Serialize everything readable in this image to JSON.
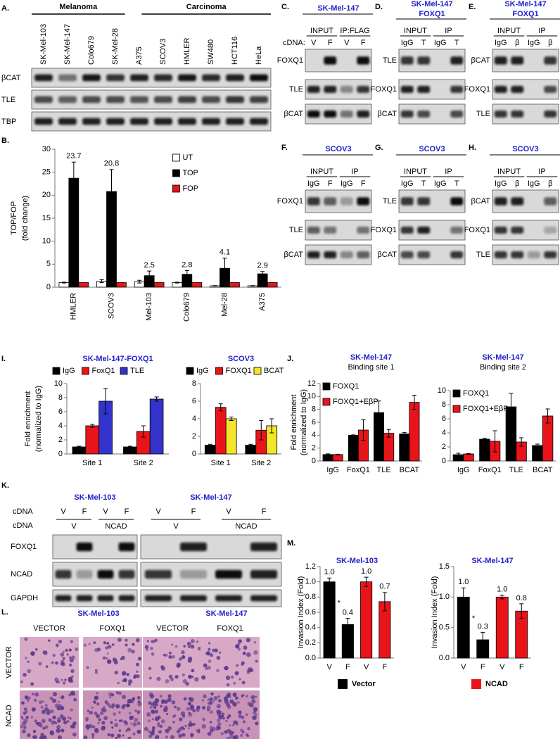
{
  "panel_labels": {
    "A": "A.",
    "B": "B.",
    "C": "C.",
    "D": "D.",
    "E": "E.",
    "F": "F.",
    "G": "G.",
    "H": "H.",
    "I": "I.",
    "J": "J.",
    "K": "K.",
    "L": "L.",
    "M": "M."
  },
  "blots": {
    "A": {
      "groups": [
        {
          "name": "Melanoma",
          "color": "#000000"
        },
        {
          "name": "Carcinoma",
          "color": "#2222cc"
        }
      ],
      "lanes": [
        {
          "label": "SK-Mel-103",
          "color": "#000000"
        },
        {
          "label": "SK-Mel-147",
          "color": "#000000"
        },
        {
          "label": "Colo679",
          "color": "#000000"
        },
        {
          "label": "SK-Mel-28",
          "color": "#000000"
        },
        {
          "label": "A375",
          "color": "#000000"
        },
        {
          "label": "SCOV3",
          "color": "#2222cc"
        },
        {
          "label": "HMLER",
          "color": "#2222cc"
        },
        {
          "label": "SW480",
          "color": "#2222cc"
        },
        {
          "label": "HCT116",
          "color": "#2222cc"
        },
        {
          "label": "HeLa",
          "color": "#2222cc"
        }
      ],
      "rows": [
        "βCAT",
        "TLE",
        "TBP"
      ]
    },
    "C": {
      "title": "SK-Mel-147",
      "headers": [
        "INPUT",
        "IP:FLAG"
      ],
      "lane_caption": "cDNA:",
      "lanes": [
        "V",
        "F",
        "V",
        "F"
      ],
      "rows": [
        "FOXQ1",
        "TLE",
        "βCAT"
      ]
    },
    "D": {
      "title": [
        "SK-Mel-147",
        "FOXQ1"
      ],
      "headers": [
        "INPUT",
        "IP"
      ],
      "lanes": [
        "IgG",
        "T",
        "IgG",
        "T"
      ],
      "rows": [
        "TLE",
        "FOXQ1",
        "βCAT"
      ]
    },
    "E": {
      "title": [
        "SK-Mel-147",
        "FOXQ1"
      ],
      "headers": [
        "INPUT",
        "IP"
      ],
      "lanes": [
        "IgG",
        "β",
        "IgG",
        "β"
      ],
      "rows": [
        "βCAT",
        "FOXQ1",
        "TLE"
      ]
    },
    "F": {
      "title": "SCOV3",
      "headers": [
        "INPUT",
        "IP"
      ],
      "lanes": [
        "IgG",
        "F",
        "IgG",
        "F"
      ],
      "rows": [
        "FOXQ1",
        "TLE",
        "βCAT"
      ]
    },
    "G": {
      "title": "SCOV3",
      "headers": [
        "INPUT",
        "IP"
      ],
      "lanes": [
        "IgG",
        "T",
        "IgG",
        "T"
      ],
      "rows": [
        "TLE",
        "FOXQ1",
        "βCAT"
      ]
    },
    "H": {
      "title": "SCOV3",
      "headers": [
        "INPUT",
        "IP"
      ],
      "lanes": [
        "IgG",
        "β",
        "IgG",
        "β"
      ],
      "rows": [
        "βCAT",
        "FOXQ1",
        "TLE"
      ]
    },
    "K": {
      "captions": [
        "cDNA",
        "cDNA"
      ],
      "rows": [
        "FOXQ1",
        "NCAD",
        "GAPDH"
      ],
      "blots": [
        {
          "title": "SK-Mel-103",
          "lanes": [
            "V",
            "F",
            "V",
            "F"
          ],
          "groups": [
            "V",
            "NCAD"
          ]
        },
        {
          "title": "SK-Mel-147",
          "lanes": [
            "V",
            "F",
            "V",
            "F"
          ],
          "groups": [
            "V",
            "NCAD"
          ]
        }
      ]
    },
    "L": {
      "titles": [
        "SK-Mel-103",
        "SK-Mel-147"
      ],
      "columns": [
        "VECTOR",
        "FOXQ1",
        "VECTOR",
        "FOXQ1"
      ],
      "rows": [
        "VECTOR",
        "NCAD"
      ]
    }
  },
  "chart_data": [
    {
      "type": "bar",
      "ylabel": [
        "TOP/FOP",
        "(fold change)"
      ],
      "categories": [
        "HMLER",
        "SCOV3",
        "Mel-103",
        "Colo679",
        "Mel-28",
        "A375"
      ],
      "category_colors": [
        "#2222cc",
        "#2222cc",
        "#000000",
        "#000000",
        "#000000",
        "#000000"
      ],
      "series": [
        {
          "name": "UT",
          "color": "#ffffff",
          "values": [
            1.0,
            1.3,
            1.2,
            1.0,
            0.3,
            0.3
          ],
          "errors": [
            0.1,
            0.3,
            0.3,
            0.1,
            0.05,
            0.05
          ]
        },
        {
          "name": "TOP",
          "color": "#000000",
          "values": [
            23.7,
            20.8,
            2.5,
            2.8,
            4.1,
            2.9
          ],
          "errors": [
            3.5,
            4.8,
            1.0,
            0.8,
            2.2,
            0.5
          ],
          "data_labels": true
        },
        {
          "name": "FOP",
          "color": "#e8141a",
          "values": [
            1,
            1,
            1,
            1,
            1,
            1
          ]
        }
      ],
      "ylim": [
        0,
        30
      ],
      "yticks": [
        0,
        5,
        10,
        15,
        20,
        25,
        30
      ],
      "legend": "right"
    },
    {
      "type": "bar",
      "title": "SK-Mel-147-FOXQ1",
      "ylabel": [
        "Fold enrichment",
        "(normalized to IgG)"
      ],
      "categories": [
        "Site 1",
        "Site 2"
      ],
      "series": [
        {
          "name": "IgG",
          "color": "#000000",
          "values": [
            1,
            1
          ],
          "errors": [
            0.1,
            0.1
          ]
        },
        {
          "name": "FoxQ1",
          "color": "#e8141a",
          "values": [
            4,
            3.2
          ],
          "errors": [
            0.2,
            0.8
          ]
        },
        {
          "name": "TLE",
          "color": "#3333cc",
          "values": [
            7.5,
            7.8
          ],
          "errors": [
            1.8,
            0.3
          ]
        }
      ],
      "ylim": [
        0,
        10
      ],
      "yticks": [
        0,
        2,
        4,
        6,
        8,
        10
      ],
      "legend": "top"
    },
    {
      "type": "bar",
      "title": "SCOV3",
      "categories": [
        "Site 1",
        "Site 2"
      ],
      "series": [
        {
          "name": "IgG",
          "color": "#000000",
          "values": [
            1,
            1
          ],
          "errors": [
            0.1,
            0.1
          ]
        },
        {
          "name": "FOXQ1",
          "color": "#e8141a",
          "values": [
            5.3,
            2.7
          ],
          "errors": [
            0.4,
            1.1
          ]
        },
        {
          "name": "BCAT",
          "color": "#f5e52a",
          "values": [
            4,
            3.2
          ],
          "errors": [
            0.2,
            0.8
          ]
        }
      ],
      "ylim": [
        0,
        8
      ],
      "yticks": [
        0,
        2,
        4,
        6,
        8
      ],
      "legend": "top"
    },
    {
      "type": "bar",
      "title": "SK-Mel-147",
      "subtitle": "Binding site 1",
      "ylabel": [
        "Fold enrichment",
        "(normalized to IgG)"
      ],
      "categories": [
        "IgG",
        "FoxQ1",
        "TLE",
        "BCAT"
      ],
      "series": [
        {
          "name": "FOXQ1",
          "color": "#000000",
          "values": [
            1,
            4,
            7.5,
            4.2
          ],
          "errors": [
            0.1,
            0.05,
            1.8,
            0.2
          ]
        },
        {
          "name": "FOXQ1+EβP",
          "color": "#e8141a",
          "values": [
            1,
            4.8,
            4.3,
            9.1
          ],
          "errors": [
            0.05,
            1.6,
            0.6,
            1.1
          ]
        }
      ],
      "ylim": [
        0,
        12
      ],
      "yticks": [
        0,
        2,
        4,
        6,
        8,
        10,
        12
      ],
      "legend": "top-left"
    },
    {
      "type": "bar",
      "title": "SK-Mel-147",
      "subtitle": "Binding site 2",
      "categories": [
        "IgG",
        "FoxQ1",
        "TLE",
        "BCAT"
      ],
      "series": [
        {
          "name": "FOXQ1",
          "color": "#000000",
          "values": [
            0.9,
            3.1,
            7.7,
            2.2
          ],
          "errors": [
            0.2,
            0.1,
            1.9,
            0.2
          ]
        },
        {
          "name": "FOXQ1+EβP",
          "color": "#e8141a",
          "values": [
            1,
            2.8,
            2.7,
            6.4
          ],
          "errors": [
            0.05,
            1.5,
            0.6,
            1.0
          ]
        }
      ],
      "ylim": [
        0,
        10
      ],
      "yticks": [
        0,
        2,
        4,
        6,
        8,
        10
      ],
      "legend": "top-left"
    },
    {
      "type": "bar",
      "title": "SK-Mel-103",
      "ylabel": [
        "Invasion Index (Fold)"
      ],
      "categories": [
        "V",
        "F",
        "V",
        "F"
      ],
      "values": [
        1.0,
        0.44,
        1.0,
        0.74
      ],
      "value_labels": [
        "1.0",
        "0.4",
        "1.0",
        "0.7"
      ],
      "errors": [
        0.05,
        0.08,
        0.06,
        0.12
      ],
      "colors": [
        "#000000",
        "#000000",
        "#e8141a",
        "#e8141a"
      ],
      "annotation": "*",
      "ylim": [
        0,
        1.2
      ],
      "yticks": [
        {
          "value": 0,
          "label": "0.0"
        },
        0.2,
        0.4,
        0.6,
        0.8,
        {
          "value": 1,
          "label": "1.0"
        },
        1.2
      ],
      "legend": "bottom",
      "legend_items": [
        {
          "name": "Vector",
          "color": "#000000"
        },
        {
          "name": "NCAD",
          "color": "#e8141a"
        }
      ]
    },
    {
      "type": "bar",
      "title": "SK-Mel-147",
      "ylabel": [
        "Invasion Index (Fold)"
      ],
      "categories": [
        "V",
        "F",
        "V",
        "F"
      ],
      "values": [
        1.0,
        0.3,
        1.0,
        0.77
      ],
      "value_labels": [
        "1.0",
        "0.3",
        "1.0",
        "0.8"
      ],
      "errors": [
        0.15,
        0.12,
        0.03,
        0.12
      ],
      "colors": [
        "#000000",
        "#000000",
        "#e8141a",
        "#e8141a"
      ],
      "annotation": "*",
      "ylim": [
        0,
        1.5
      ],
      "yticks": [
        {
          "value": 0,
          "label": "0.0"
        },
        0.5,
        {
          "value": 1,
          "label": "1.0"
        },
        1.5
      ]
    }
  ]
}
